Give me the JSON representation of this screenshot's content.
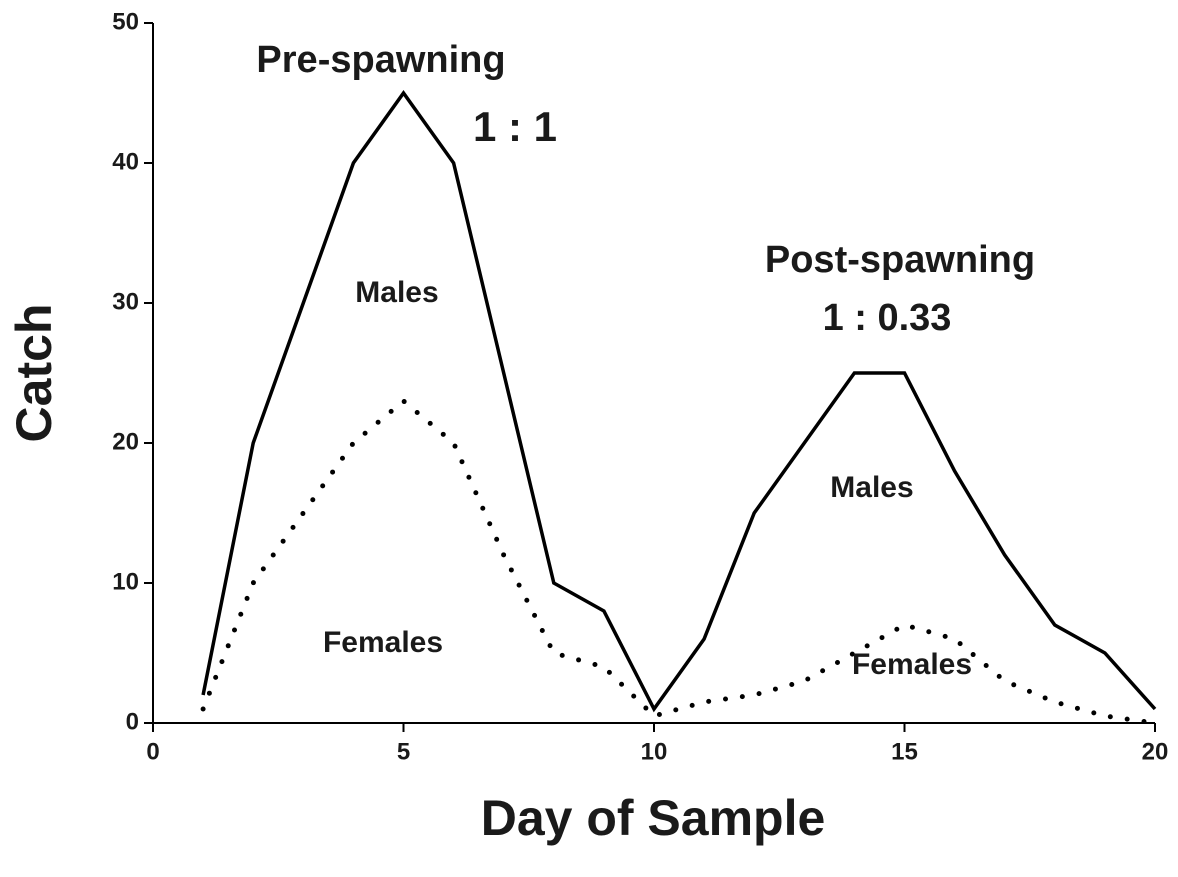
{
  "chart_data": {
    "type": "line",
    "x_label": "Day of Sample",
    "y_label": "Catch",
    "x": [
      1,
      2,
      3,
      4,
      5,
      6,
      7,
      8,
      9,
      10,
      11,
      12,
      13,
      14,
      15,
      16,
      17,
      18,
      19,
      20
    ],
    "series": [
      {
        "name": "Males",
        "color": "#000000",
        "style": "solid",
        "values": [
          2,
          20,
          30,
          40,
          45,
          40,
          25,
          10,
          8,
          1,
          6,
          15,
          20,
          25,
          25,
          18,
          12,
          7,
          5,
          1
        ]
      },
      {
        "name": "Females",
        "color": "#000000",
        "style": "dotted",
        "values": [
          1,
          10,
          15,
          20,
          23,
          20,
          12,
          5,
          4,
          0.5,
          1.5,
          2,
          3,
          5,
          7,
          6,
          3,
          1.5,
          0.5,
          0
        ]
      }
    ],
    "annotations": [
      "Pre-spawning",
      "1 : 1",
      "Post-spawning",
      "1 : 0.33",
      "Males",
      "Females"
    ],
    "xlim": [
      0,
      20
    ],
    "xticks": [
      0,
      5,
      10,
      15,
      20
    ],
    "ylim": [
      0,
      50
    ],
    "yticks": [
      0,
      10,
      20,
      30,
      40,
      50
    ],
    "grid": false
  }
}
